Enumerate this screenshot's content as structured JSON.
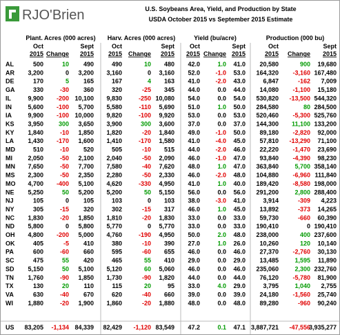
{
  "header": {
    "logo": "RJO'Brien",
    "title": "U.S. Soybeans Area, Yield, and Production by State",
    "subtitle": "USDA October 2015 vs September 2015 Estimate"
  },
  "groups": [
    "Plant. Acres (000 acres)",
    "Harv. Acres (000 acres)",
    "Yield (bu/acre)",
    "Production (000 bu)"
  ],
  "subheaders": {
    "oct": [
      "Oct",
      "2015"
    ],
    "change": "Change",
    "sept": [
      "Sept",
      "2015"
    ]
  },
  "rows": [
    {
      "state": "AL",
      "cells": [
        "500",
        "10",
        "490",
        "490",
        "10",
        "480",
        "42.0",
        "1.0",
        "41.0",
        "20,580",
        "900",
        "19,680"
      ]
    },
    {
      "state": "AR",
      "cells": [
        "3,200",
        "0",
        "3,200",
        "3,160",
        "0",
        "3,160",
        "52.0",
        "-1.0",
        "53.0",
        "164,320",
        "-3,160",
        "167,480"
      ]
    },
    {
      "state": "DE",
      "cells": [
        "170",
        "5",
        "165",
        "167",
        "4",
        "163",
        "41.0",
        "-2.0",
        "43.0",
        "6,847",
        "-162",
        "7,009"
      ]
    },
    {
      "state": "GA",
      "cells": [
        "330",
        "-30",
        "360",
        "320",
        "-25",
        "345",
        "44.0",
        "0.0",
        "44.0",
        "14,080",
        "-1,100",
        "15,180"
      ]
    },
    {
      "state": "IL",
      "cells": [
        "9,900",
        "-200",
        "10,100",
        "9,830",
        "-250",
        "10,080",
        "54.0",
        "0.0",
        "54.0",
        "530,820",
        "-13,500",
        "544,320"
      ]
    },
    {
      "state": "IN",
      "cells": [
        "5,600",
        "-100",
        "5,700",
        "5,580",
        "-110",
        "5,690",
        "51.0",
        "1.0",
        "50.0",
        "284,580",
        "80",
        "284,500"
      ]
    },
    {
      "state": "IA",
      "cells": [
        "9,900",
        "-100",
        "10,000",
        "9,820",
        "-100",
        "9,920",
        "53.0",
        "0.0",
        "53.0",
        "520,460",
        "-5,300",
        "525,760"
      ]
    },
    {
      "state": "KS",
      "cells": [
        "3,950",
        "300",
        "3,650",
        "3,900",
        "300",
        "3,600",
        "37.0",
        "0.0",
        "37.0",
        "144,300",
        "11,100",
        "133,200"
      ]
    },
    {
      "state": "KY",
      "cells": [
        "1,840",
        "-10",
        "1,850",
        "1,820",
        "-20",
        "1,840",
        "49.0",
        "-1.0",
        "50.0",
        "89,180",
        "-2,820",
        "92,000"
      ]
    },
    {
      "state": "LA",
      "cells": [
        "1,430",
        "-170",
        "1,600",
        "1,410",
        "-170",
        "1,580",
        "41.0",
        "-4.0",
        "45.0",
        "57,810",
        "-13,290",
        "71,100"
      ]
    },
    {
      "state": "MD",
      "cells": [
        "510",
        "-10",
        "520",
        "505",
        "-10",
        "515",
        "44.0",
        "-2.0",
        "46.0",
        "22,220",
        "-1,470",
        "23,690"
      ]
    },
    {
      "state": "MI",
      "cells": [
        "2,050",
        "-50",
        "2,100",
        "2,040",
        "-50",
        "2,090",
        "46.0",
        "-1.0",
        "47.0",
        "93,840",
        "-4,390",
        "98,230"
      ]
    },
    {
      "state": "MN",
      "cells": [
        "7,650",
        "-50",
        "7,700",
        "7,580",
        "-40",
        "7,620",
        "48.0",
        "1.0",
        "47.0",
        "363,840",
        "5,700",
        "358,140"
      ]
    },
    {
      "state": "MS",
      "cells": [
        "2,300",
        "-50",
        "2,350",
        "2,280",
        "-50",
        "2,330",
        "46.0",
        "-2.0",
        "48.0",
        "104,880",
        "-6,960",
        "111,840"
      ]
    },
    {
      "state": "MO",
      "cells": [
        "4,700",
        "-400",
        "5,100",
        "4,620",
        "-330",
        "4,950",
        "41.0",
        "1.0",
        "40.0",
        "189,420",
        "-8,580",
        "198,000"
      ]
    },
    {
      "state": "NE",
      "cells": [
        "5,250",
        "50",
        "5,200",
        "5,200",
        "50",
        "5,150",
        "56.0",
        "0.0",
        "56.0",
        "291,200",
        "2,800",
        "288,400"
      ]
    },
    {
      "state": "NJ",
      "cells": [
        "105",
        "0",
        "105",
        "103",
        "0",
        "103",
        "38.0",
        "-3.0",
        "41.0",
        "3,914",
        "-309",
        "4,223"
      ]
    },
    {
      "state": "NY",
      "cells": [
        "305",
        "-15",
        "320",
        "302",
        "-15",
        "317",
        "46.0",
        "1.0",
        "45.0",
        "13,892",
        "-373",
        "14,265"
      ]
    },
    {
      "state": "NC",
      "cells": [
        "1,830",
        "-20",
        "1,850",
        "1,810",
        "-20",
        "1,830",
        "33.0",
        "0.0",
        "33.0",
        "59,730",
        "-660",
        "60,390"
      ]
    },
    {
      "state": "ND",
      "cells": [
        "5,800",
        "0",
        "5,800",
        "5,770",
        "0",
        "5,770",
        "33.0",
        "0.0",
        "33.0",
        "190,410",
        "0",
        "190,410"
      ]
    },
    {
      "state": "OH",
      "cells": [
        "4,800",
        "-200",
        "5,000",
        "4,760",
        "-190",
        "4,950",
        "50.0",
        "2.0",
        "48.0",
        "238,000",
        "400",
        "237,600"
      ]
    },
    {
      "state": "OK",
      "cells": [
        "405",
        "-5",
        "410",
        "380",
        "-10",
        "390",
        "27.0",
        "1.0",
        "26.0",
        "10,260",
        "120",
        "10,140"
      ]
    },
    {
      "state": "PA",
      "cells": [
        "600",
        "-60",
        "660",
        "595",
        "-60",
        "655",
        "46.0",
        "0.0",
        "46.0",
        "27,370",
        "-2,760",
        "30,130"
      ]
    },
    {
      "state": "SC",
      "cells": [
        "475",
        "55",
        "420",
        "465",
        "55",
        "410",
        "29.0",
        "0.0",
        "29.0",
        "13,485",
        "1,595",
        "11,890"
      ]
    },
    {
      "state": "SD",
      "cells": [
        "5,150",
        "50",
        "5,100",
        "5,120",
        "60",
        "5,060",
        "46.0",
        "0.0",
        "46.0",
        "235,060",
        "2,300",
        "232,760"
      ]
    },
    {
      "state": "TN",
      "cells": [
        "1,760",
        "-90",
        "1,850",
        "1,730",
        "-90",
        "1,820",
        "44.0",
        "0.0",
        "44.0",
        "76,120",
        "-5,780",
        "81,900"
      ]
    },
    {
      "state": "TX",
      "cells": [
        "130",
        "20",
        "110",
        "115",
        "20",
        "95",
        "33.0",
        "4.0",
        "29.0",
        "3,795",
        "1,040",
        "2,755"
      ]
    },
    {
      "state": "VA",
      "cells": [
        "630",
        "-40",
        "670",
        "620",
        "-40",
        "660",
        "39.0",
        "0.0",
        "39.0",
        "24,180",
        "-1,560",
        "25,740"
      ]
    },
    {
      "state": "WI",
      "cells": [
        "1,880",
        "-20",
        "1,900",
        "1,860",
        "-20",
        "1,880",
        "48.0",
        "0.0",
        "48.0",
        "89,280",
        "-960",
        "90,240"
      ]
    }
  ],
  "total": {
    "state": "US",
    "cells": [
      "83,205",
      "-1,134",
      "84,339",
      "82,429",
      "-1,120",
      "83,549",
      "47.2",
      "0.1",
      "47.1",
      "3,887,721",
      "-47,556",
      "3,935,277"
    ]
  }
}
